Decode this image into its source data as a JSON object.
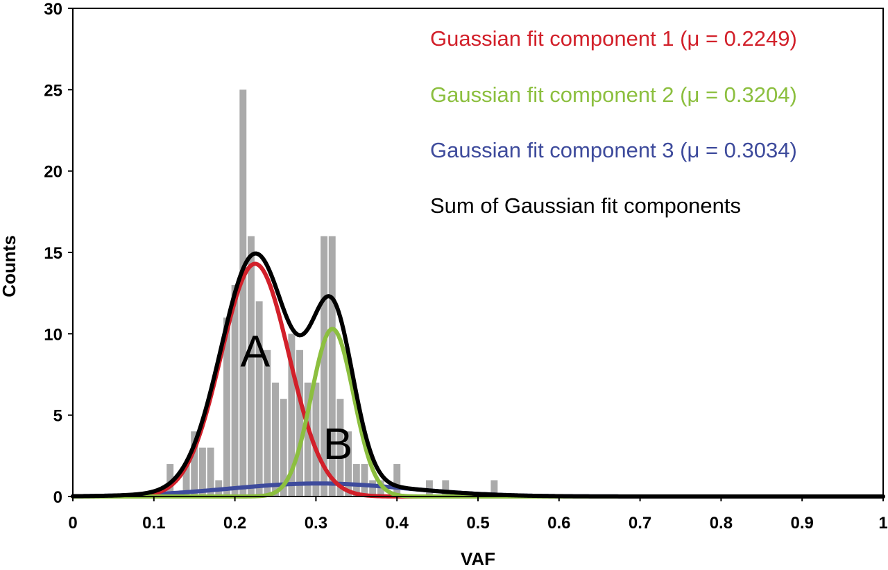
{
  "chart_data": {
    "type": "bar",
    "title": "",
    "xlabel": "VAF",
    "ylabel": "Counts",
    "xlim": [
      0,
      1
    ],
    "ylim": [
      0,
      30
    ],
    "xticks": [
      0,
      0.1,
      0.2,
      0.3,
      0.4,
      0.5,
      0.6,
      0.7,
      0.8,
      0.9,
      1
    ],
    "xtick_labels": [
      "0",
      "0.1",
      "0.2",
      "0.3",
      "0.4",
      "0.5",
      "0.6",
      "0.7",
      "0.8",
      "0.9",
      "1"
    ],
    "yticks": [
      0,
      5,
      10,
      15,
      20,
      25,
      30
    ],
    "ytick_labels": [
      "0",
      "5",
      "10",
      "15",
      "20",
      "25",
      "30"
    ],
    "grid": false,
    "legend_placement": "top-right",
    "bar_width": 0.0085,
    "bar_color": "#aaaaaa",
    "histogram": {
      "x": [
        0.12,
        0.14,
        0.15,
        0.16,
        0.17,
        0.18,
        0.19,
        0.2,
        0.21,
        0.22,
        0.23,
        0.24,
        0.25,
        0.26,
        0.27,
        0.28,
        0.29,
        0.3,
        0.31,
        0.32,
        0.33,
        0.34,
        0.35,
        0.36,
        0.37,
        0.38,
        0.4,
        0.44,
        0.46,
        0.52
      ],
      "values": [
        2,
        2,
        4,
        3,
        3,
        1,
        11,
        13,
        25,
        16,
        12,
        9,
        7,
        6,
        10,
        9,
        7,
        7,
        16,
        16,
        6,
        4,
        2,
        2,
        1,
        1,
        2,
        1,
        1,
        1
      ]
    },
    "series": [
      {
        "name": "Guassian fit component 1 (μ = 0.2249)",
        "type": "gaussian",
        "mu": 0.2249,
        "peak": 14.3,
        "sigma": 0.042,
        "color": "#d2202a"
      },
      {
        "name": "Gaussian fit component 2 (μ = 0.3204)",
        "type": "gaussian",
        "mu": 0.3204,
        "peak": 10.3,
        "sigma": 0.026,
        "color": "#8cbf3f"
      },
      {
        "name": "Gaussian fit component 3 (μ = 0.3034)",
        "type": "gaussian",
        "mu": 0.3034,
        "peak": 0.8,
        "sigma": 0.11,
        "color": "#3e4b9c"
      },
      {
        "name": "Sum of Gaussian fit components",
        "type": "sum",
        "color": "#000000"
      }
    ],
    "annotations": [
      {
        "text": "A",
        "x": 0.225,
        "y": 8.0
      },
      {
        "text": "B",
        "x": 0.327,
        "y": 2.3
      }
    ]
  }
}
